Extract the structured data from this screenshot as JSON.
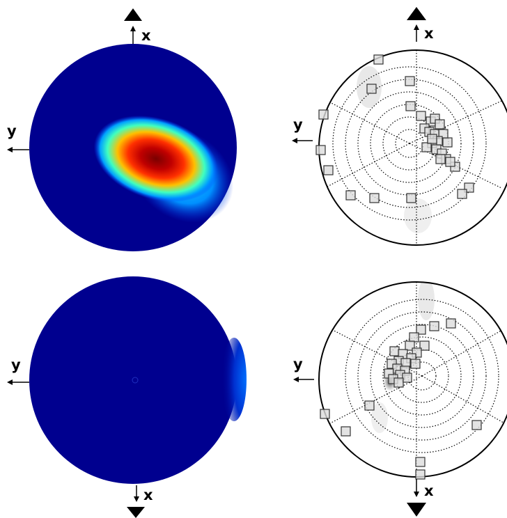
{
  "figure": {
    "axis_labels": {
      "x": "x",
      "y": "y"
    },
    "panels": [
      {
        "id": "top-left",
        "kind": "density-heatmap",
        "colormap": "jet",
        "direction_marker": "up"
      },
      {
        "id": "top-right",
        "kind": "stereonet-scatter",
        "marker": "square",
        "direction_marker": "up"
      },
      {
        "id": "bottom-left",
        "kind": "density-heatmap",
        "colormap": "jet",
        "direction_marker": "down"
      },
      {
        "id": "bottom-right",
        "kind": "stereonet-scatter",
        "marker": "square",
        "direction_marker": "down"
      }
    ],
    "colors": {
      "low": "#00008f",
      "mid_blue": "#0070ff",
      "cyan": "#00e0ff",
      "yellow": "#ffe000",
      "orange": "#ff7000",
      "red": "#e00000",
      "max": "#7a0000",
      "marker_fill": "#dcdcdc",
      "marker_stroke": "#333333",
      "grid": "#000000"
    },
    "legend_icons": [
      "triangle-up-icon",
      "triangle-down-icon",
      "arrow-icon"
    ]
  }
}
